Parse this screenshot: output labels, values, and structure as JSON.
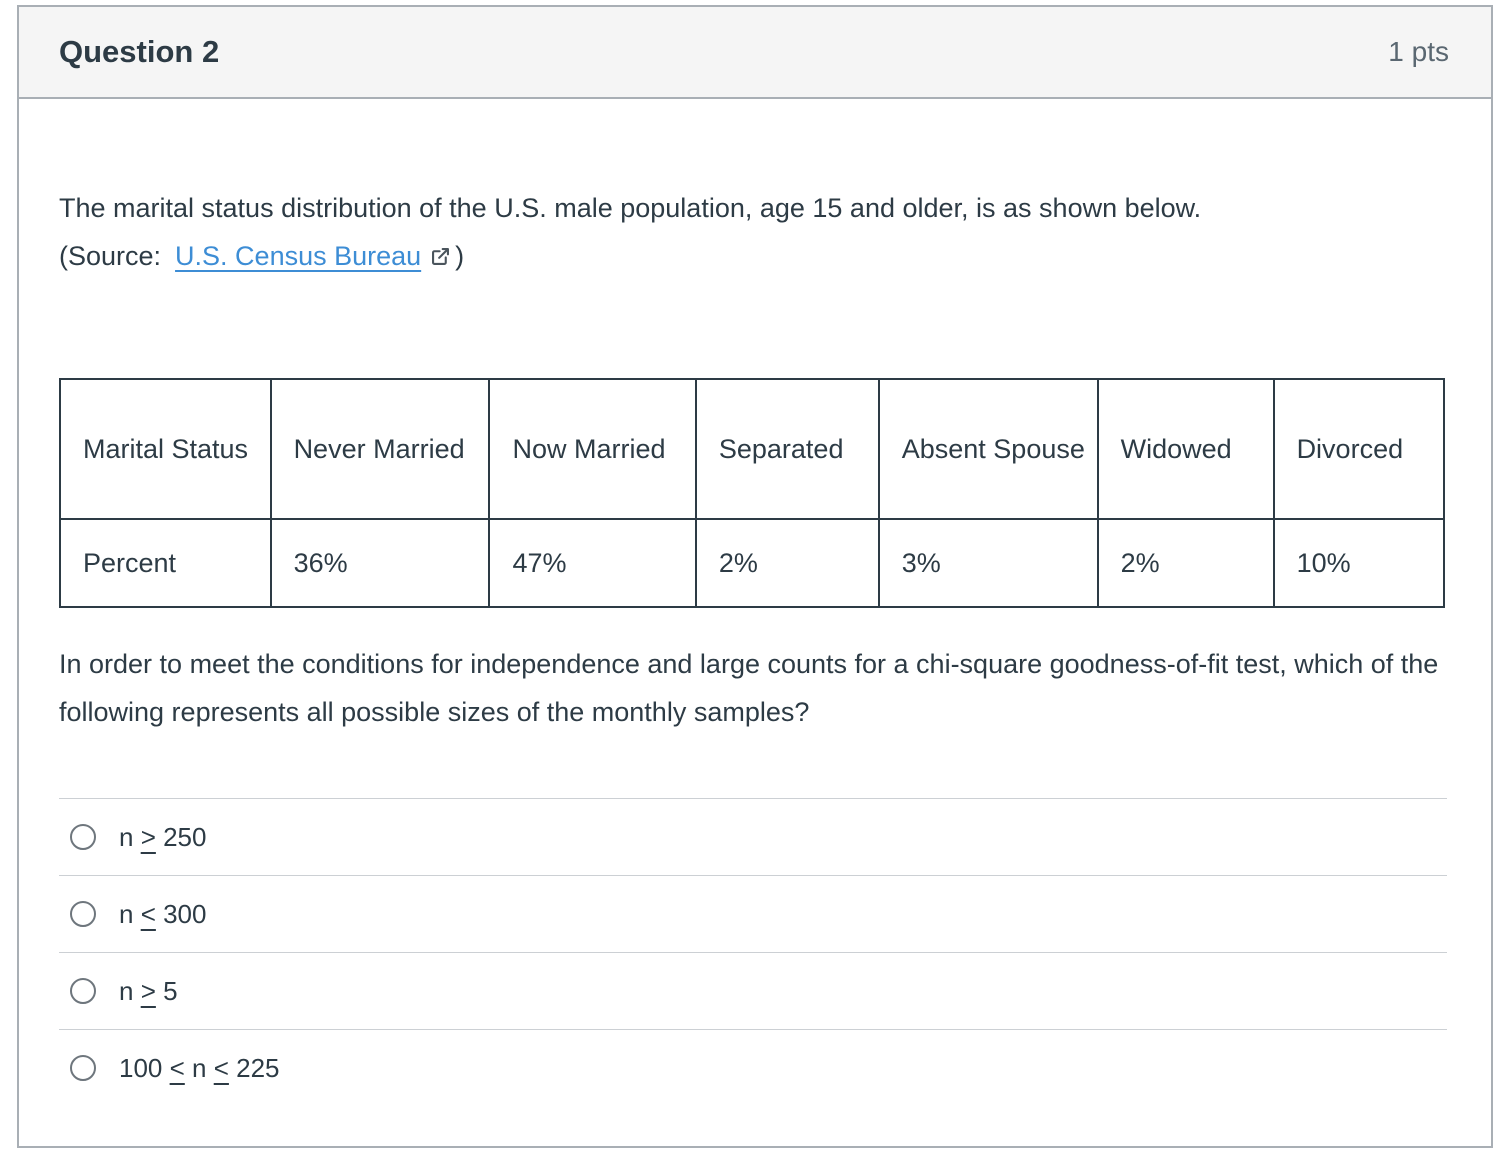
{
  "question": {
    "title": "Question 2",
    "points": "1 pts"
  },
  "prompt": {
    "intro": "The marital status distribution of the U.S. male population, age 15 and older, is as shown below.",
    "source_prefix": "(Source:",
    "source_link_text": "U.S. Census Bureau",
    "source_suffix": ")",
    "question_text": "In order to meet the conditions for independence and large counts for a chi-square goodness-of-fit test, which of the following represents all possible sizes of the monthly samples?"
  },
  "table": {
    "header_row": [
      "Marital Status",
      "Never Married",
      "Now Married",
      "Separated",
      "Absent Spouse",
      "Widowed",
      "Divorced"
    ],
    "value_row": [
      "Percent",
      "36%",
      "47%",
      "2%",
      "3%",
      "2%",
      "10%"
    ]
  },
  "options": [
    {
      "label": "n ≥ 250",
      "selected": false,
      "segments": [
        {
          "text": "n "
        },
        {
          "text": ">",
          "u": true
        },
        {
          "text": " 250"
        }
      ]
    },
    {
      "label": "n ≤ 300",
      "selected": false,
      "segments": [
        {
          "text": "n "
        },
        {
          "text": "<",
          "u": true
        },
        {
          "text": " 300"
        }
      ]
    },
    {
      "label": "n ≥ 5",
      "selected": false,
      "segments": [
        {
          "text": "n "
        },
        {
          "text": ">",
          "u": true
        },
        {
          "text": " 5"
        }
      ]
    },
    {
      "label": "100 ≤ n ≤ 225",
      "selected": false,
      "segments": [
        {
          "text": "100 "
        },
        {
          "text": "<",
          "u": true
        },
        {
          "text": " n "
        },
        {
          "text": "<",
          "u": true
        },
        {
          "text": " 225"
        }
      ]
    }
  ],
  "icons": {
    "external_link": "external-link-icon"
  },
  "colors": {
    "header_bg": "#f5f5f5",
    "card_border": "#a9afb5",
    "text": "#2d3b45",
    "points_text": "#5a6771",
    "link_blue": "#3d8dd5",
    "table_border": "#2d3b45",
    "option_divider": "#ccd0d4",
    "radio_border": "#6e767d",
    "ext_icon": "#4a545c"
  }
}
